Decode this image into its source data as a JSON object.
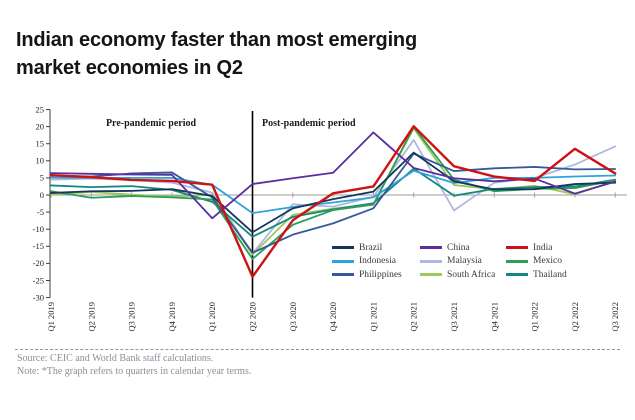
{
  "page": {
    "title_lines": [
      "Indian economy faster than most emerging",
      "market economies in Q2"
    ]
  },
  "chart_data": {
    "type": "line",
    "title": "Indian economy faster than most emerging market economies in Q2",
    "xlabel": "",
    "ylabel": "",
    "ylim": [
      -30,
      25
    ],
    "ytick_step": 5,
    "grid": "zero-line-only",
    "legend_position": "inside-bottom-right",
    "annotations": {
      "pre": "Pre-pandemic period",
      "post": "Post-pandemic period",
      "divider_at": "Q2 2020"
    },
    "categories": [
      "Q1 2019",
      "Q2 2019",
      "Q3 2019",
      "Q4 2019",
      "Q1 2020",
      "Q2 2020",
      "Q3 2020",
      "Q4 2020",
      "Q1 2021",
      "Q2 2021",
      "Q3 2021",
      "Q4 2021",
      "Q1 2022",
      "Q2 2022",
      "Q3 2022"
    ],
    "series": [
      {
        "name": "Brazil",
        "color": "#16365D",
        "values": [
          0.6,
          1.1,
          1.2,
          1.7,
          -0.3,
          -10.9,
          -3.9,
          -1.2,
          1.0,
          12.4,
          4.0,
          1.6,
          1.7,
          3.2,
          3.6
        ]
      },
      {
        "name": "China",
        "color": "#5B2E9E",
        "values": [
          6.4,
          6.2,
          6.0,
          5.9,
          -6.8,
          3.2,
          4.9,
          6.5,
          18.3,
          7.9,
          4.9,
          4.0,
          4.8,
          0.4,
          3.9
        ]
      },
      {
        "name": "India",
        "color": "#CE1212",
        "values": [
          5.8,
          5.2,
          4.4,
          4.1,
          3.0,
          -23.9,
          -7.4,
          0.5,
          2.5,
          20.1,
          8.4,
          5.4,
          4.1,
          13.5,
          6.3
        ]
      },
      {
        "name": "Indonesia",
        "color": "#2FA3DC",
        "values": [
          5.1,
          5.0,
          5.0,
          5.0,
          3.0,
          -5.3,
          -3.5,
          -2.2,
          -0.7,
          7.1,
          3.5,
          5.0,
          5.0,
          5.4,
          5.7
        ]
      },
      {
        "name": "Malaysia",
        "color": "#AEB8E0",
        "values": [
          4.5,
          4.8,
          4.4,
          3.6,
          0.7,
          -17.1,
          -2.7,
          -3.4,
          -0.5,
          16.1,
          -4.5,
          3.6,
          5.0,
          8.9,
          14.2
        ]
      },
      {
        "name": "Mexico",
        "color": "#2E9D57",
        "values": [
          1.1,
          -0.8,
          -0.3,
          -0.7,
          -1.3,
          -18.7,
          -8.7,
          -4.4,
          -2.8,
          19.9,
          4.5,
          1.1,
          1.8,
          2.0,
          4.3
        ]
      },
      {
        "name": "Philippines",
        "color": "#36599B",
        "values": [
          5.7,
          5.4,
          6.3,
          6.6,
          -0.7,
          -16.9,
          -11.6,
          -8.3,
          -3.9,
          12.1,
          7.0,
          7.8,
          8.2,
          7.5,
          7.6
        ]
      },
      {
        "name": "South Africa",
        "color": "#9DC85A",
        "values": [
          0.1,
          0.9,
          0.1,
          -0.5,
          0.1,
          -17.4,
          -5.8,
          -4.0,
          -2.6,
          19.5,
          2.9,
          1.7,
          2.7,
          0.2,
          4.1
        ]
      },
      {
        "name": "Thailand",
        "color": "#17877D",
        "values": [
          2.8,
          2.3,
          2.6,
          1.5,
          -2.0,
          -12.2,
          -6.4,
          -4.2,
          -2.4,
          7.7,
          -0.2,
          1.8,
          2.3,
          2.5,
          4.5
        ]
      }
    ]
  },
  "footer": {
    "source": "Source: CEIC and World Bank staff calculations.",
    "note": "Note: *The graph refers to quarters in calendar year terms."
  }
}
